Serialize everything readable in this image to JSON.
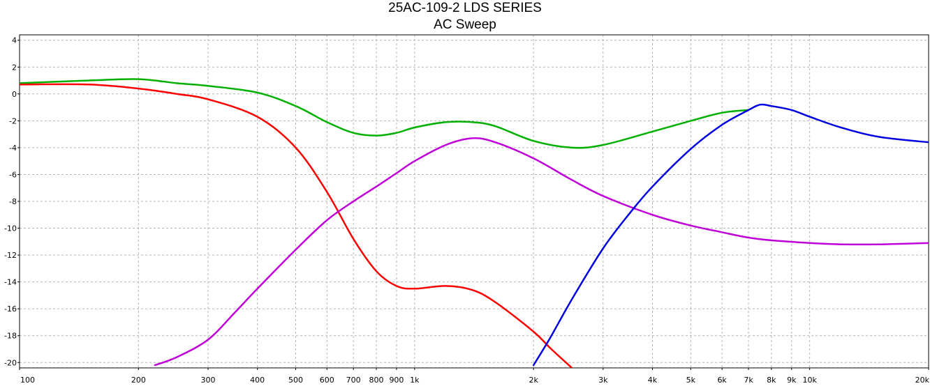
{
  "chart_data": {
    "type": "line",
    "title": "25AC-109-2 LDS SERIES",
    "subtitle": "AC Sweep",
    "xlabel": "",
    "ylabel": "",
    "x_scale": "log",
    "xlim": [
      100,
      20000
    ],
    "ylim": [
      -20.4,
      4.4
    ],
    "grid": true,
    "x_ticks": [
      {
        "value": 100,
        "label": "100"
      },
      {
        "value": 200,
        "label": "200"
      },
      {
        "value": 300,
        "label": "300"
      },
      {
        "value": 400,
        "label": "400"
      },
      {
        "value": 500,
        "label": "500"
      },
      {
        "value": 600,
        "label": "600"
      },
      {
        "value": 700,
        "label": "700"
      },
      {
        "value": 800,
        "label": "800"
      },
      {
        "value": 900,
        "label": "900"
      },
      {
        "value": 1000,
        "label": "1k"
      },
      {
        "value": 2000,
        "label": "2k"
      },
      {
        "value": 3000,
        "label": "3k"
      },
      {
        "value": 4000,
        "label": "4k"
      },
      {
        "value": 5000,
        "label": "5k"
      },
      {
        "value": 6000,
        "label": "6k"
      },
      {
        "value": 7000,
        "label": "7k"
      },
      {
        "value": 8000,
        "label": "8k"
      },
      {
        "value": 9000,
        "label": "9k"
      },
      {
        "value": 10000,
        "label": "10k"
      },
      {
        "value": 20000,
        "label": "20k"
      }
    ],
    "y_ticks": [
      4,
      2,
      0,
      -2,
      -4,
      -6,
      -8,
      -10,
      -12,
      -14,
      -16,
      -18,
      -20
    ],
    "series": [
      {
        "color": "#00b000",
        "x": [
          100,
          150,
          200,
          250,
          300,
          400,
          500,
          600,
          700,
          800,
          900,
          1000,
          1200,
          1400,
          1600,
          2000,
          2500,
          3000,
          4000,
          5000,
          6000,
          7000
        ],
        "y": [
          0.8,
          1.0,
          1.1,
          0.8,
          0.6,
          0.1,
          -0.9,
          -2.1,
          -2.9,
          -3.1,
          -2.9,
          -2.5,
          -2.1,
          -2.1,
          -2.4,
          -3.5,
          -4.0,
          -3.8,
          -2.8,
          -2.0,
          -1.4,
          -1.2
        ]
      },
      {
        "color": "#ff0000",
        "x": [
          100,
          150,
          200,
          250,
          300,
          400,
          500,
          600,
          700,
          800,
          900,
          1000,
          1200,
          1400,
          1600,
          2000,
          2200,
          2500
        ],
        "y": [
          0.7,
          0.7,
          0.4,
          0.0,
          -0.4,
          -1.7,
          -4.0,
          -7.3,
          -10.8,
          -13.2,
          -14.3,
          -14.5,
          -14.3,
          -14.6,
          -15.5,
          -17.7,
          -18.9,
          -20.4
        ]
      },
      {
        "color": "#c000d8",
        "x": [
          220,
          250,
          300,
          350,
          400,
          500,
          600,
          700,
          800,
          900,
          1000,
          1200,
          1400,
          1600,
          2000,
          2500,
          3000,
          4000,
          5000,
          6000,
          7000,
          8000,
          10000,
          12000,
          15000,
          20000
        ],
        "y": [
          -20.2,
          -19.6,
          -18.3,
          -16.3,
          -14.5,
          -11.6,
          -9.4,
          -8.0,
          -6.9,
          -5.9,
          -5.0,
          -3.8,
          -3.3,
          -3.6,
          -4.8,
          -6.4,
          -7.6,
          -9.0,
          -9.8,
          -10.3,
          -10.7,
          -10.9,
          -11.1,
          -11.2,
          -11.2,
          -11.1
        ]
      },
      {
        "color": "#0000e0",
        "x": [
          2000,
          2200,
          2500,
          3000,
          3500,
          4000,
          5000,
          6000,
          7000,
          7500,
          8000,
          9000,
          10000,
          12000,
          15000,
          20000
        ],
        "y": [
          -20.2,
          -18.2,
          -15.3,
          -11.5,
          -8.9,
          -6.9,
          -4.1,
          -2.3,
          -1.2,
          -0.8,
          -0.9,
          -1.2,
          -1.7,
          -2.5,
          -3.2,
          -3.6
        ]
      }
    ]
  }
}
